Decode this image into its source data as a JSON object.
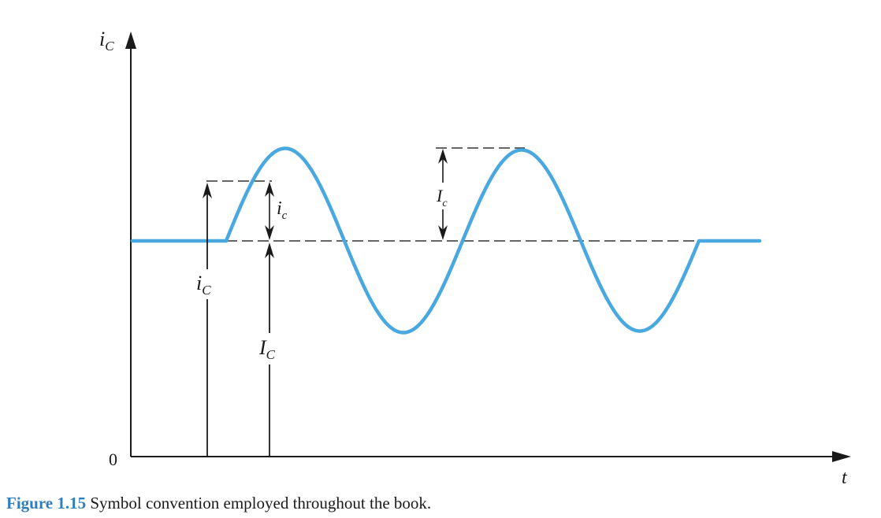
{
  "axes": {
    "y_label_main": "i",
    "y_label_sub": "C",
    "x_label": "t",
    "origin_label": "0"
  },
  "annotations": {
    "total_main": "i",
    "total_sub": "C",
    "dc_main": "I",
    "dc_sub": "C",
    "ac_inst_main": "i",
    "ac_inst_sub": "c",
    "ac_peak_main": "I",
    "ac_peak_sub": "c"
  },
  "caption": {
    "figure_label": "Figure 1.15",
    "text": " Symbol convention employed throughout the book."
  },
  "colors": {
    "signal": "#4aa8e0",
    "axis": "#1a1a1a",
    "dashed": "#333333",
    "caption_label": "#2f7fbe"
  }
}
